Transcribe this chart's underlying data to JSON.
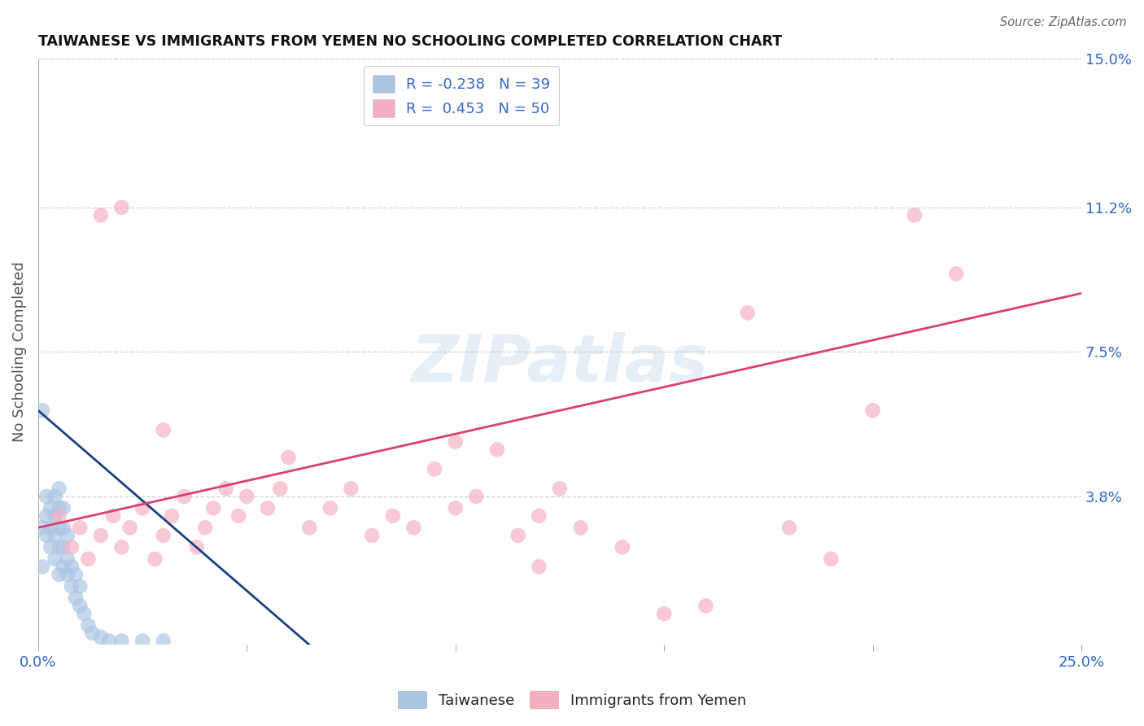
{
  "title": "TAIWANESE VS IMMIGRANTS FROM YEMEN NO SCHOOLING COMPLETED CORRELATION CHART",
  "source": "Source: ZipAtlas.com",
  "ylabel": "No Schooling Completed",
  "xlim": [
    0,
    0.25
  ],
  "ylim": [
    0,
    0.15
  ],
  "xtick_vals": [
    0.0,
    0.05,
    0.1,
    0.15,
    0.2,
    0.25
  ],
  "xtick_labels": [
    "0.0%",
    "",
    "",
    "",
    "",
    "25.0%"
  ],
  "ytick_vals_right": [
    0.038,
    0.075,
    0.112,
    0.15
  ],
  "ytick_labels_right": [
    "3.8%",
    "7.5%",
    "11.2%",
    "15.0%"
  ],
  "legend_labels": [
    "Taiwanese",
    "Immigrants from Yemen"
  ],
  "legend_r": [
    -0.238,
    0.453
  ],
  "legend_n": [
    39,
    50
  ],
  "blue_color": "#aac4e2",
  "pink_color": "#f5aec0",
  "blue_line_color": "#1a3f80",
  "pink_line_color": "#d94070",
  "background_color": "#ffffff",
  "grid_color": "#cccccc",
  "watermark": "ZIPatlas",
  "taiwanese_x": [
    0.001,
    0.001,
    0.002,
    0.002,
    0.002,
    0.003,
    0.003,
    0.003,
    0.004,
    0.004,
    0.004,
    0.004,
    0.005,
    0.005,
    0.005,
    0.005,
    0.005,
    0.006,
    0.006,
    0.006,
    0.006,
    0.007,
    0.007,
    0.007,
    0.008,
    0.008,
    0.009,
    0.009,
    0.01,
    0.01,
    0.011,
    0.012,
    0.013,
    0.015,
    0.017,
    0.02,
    0.025,
    0.03,
    0.001
  ],
  "taiwanese_y": [
    0.02,
    0.03,
    0.028,
    0.033,
    0.038,
    0.025,
    0.03,
    0.035,
    0.022,
    0.028,
    0.033,
    0.038,
    0.018,
    0.025,
    0.03,
    0.035,
    0.04,
    0.02,
    0.025,
    0.03,
    0.035,
    0.018,
    0.022,
    0.028,
    0.015,
    0.02,
    0.012,
    0.018,
    0.01,
    0.015,
    0.008,
    0.005,
    0.003,
    0.002,
    0.001,
    0.001,
    0.001,
    0.001,
    0.06
  ],
  "yemen_x": [
    0.005,
    0.008,
    0.01,
    0.012,
    0.015,
    0.018,
    0.02,
    0.022,
    0.025,
    0.028,
    0.03,
    0.032,
    0.035,
    0.038,
    0.04,
    0.042,
    0.045,
    0.048,
    0.05,
    0.055,
    0.058,
    0.06,
    0.065,
    0.07,
    0.075,
    0.08,
    0.085,
    0.09,
    0.095,
    0.1,
    0.105,
    0.11,
    0.115,
    0.12,
    0.125,
    0.13,
    0.14,
    0.15,
    0.16,
    0.17,
    0.18,
    0.19,
    0.2,
    0.21,
    0.22,
    0.1,
    0.03,
    0.02,
    0.015,
    0.12
  ],
  "yemen_y": [
    0.033,
    0.025,
    0.03,
    0.022,
    0.028,
    0.033,
    0.025,
    0.03,
    0.035,
    0.022,
    0.028,
    0.033,
    0.038,
    0.025,
    0.03,
    0.035,
    0.04,
    0.033,
    0.038,
    0.035,
    0.04,
    0.048,
    0.03,
    0.035,
    0.04,
    0.028,
    0.033,
    0.03,
    0.045,
    0.052,
    0.038,
    0.05,
    0.028,
    0.033,
    0.04,
    0.03,
    0.025,
    0.008,
    0.01,
    0.085,
    0.03,
    0.022,
    0.06,
    0.11,
    0.095,
    0.035,
    0.055,
    0.112,
    0.11,
    0.02
  ],
  "blue_line_x": [
    0.0,
    0.065
  ],
  "blue_line_y": [
    0.06,
    0.0
  ],
  "pink_line_x": [
    0.0,
    0.25
  ],
  "pink_line_y": [
    0.03,
    0.09
  ]
}
